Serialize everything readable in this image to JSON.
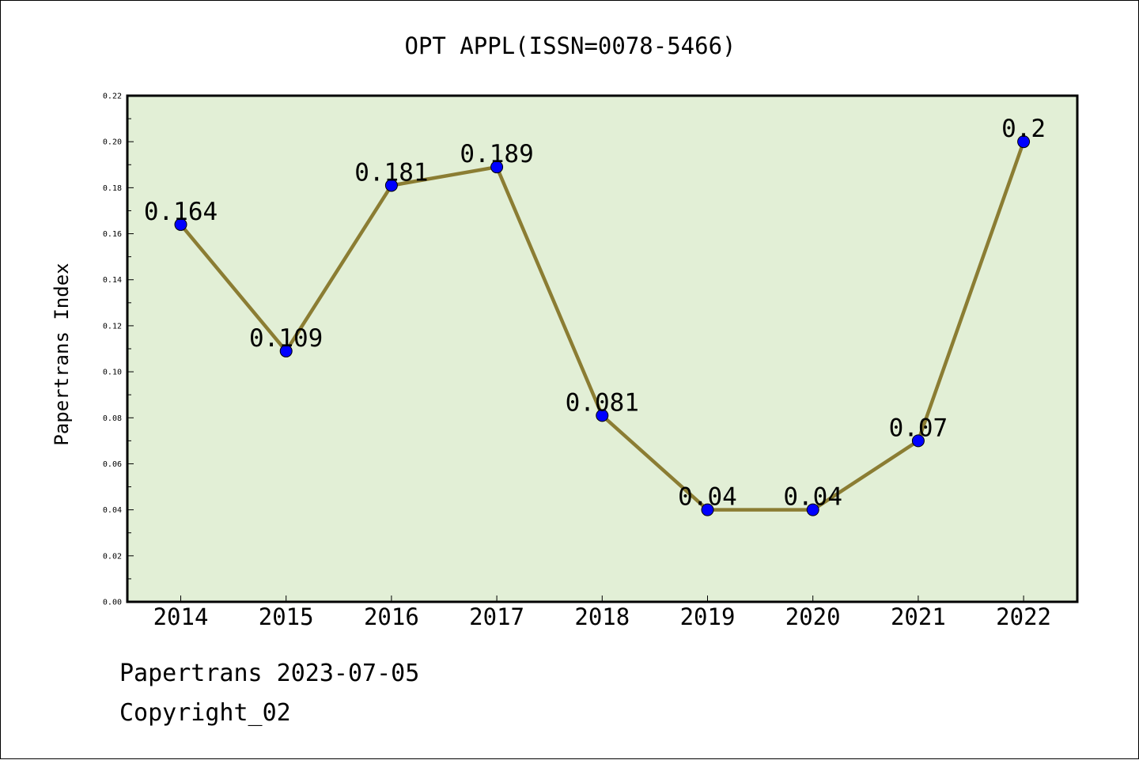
{
  "chart_data": {
    "type": "line",
    "title": "OPT APPL(ISSN=0078-5466)",
    "xlabel": "",
    "ylabel": "Papertrans Index",
    "categories": [
      "2014",
      "2015",
      "2016",
      "2017",
      "2018",
      "2019",
      "2020",
      "2021",
      "2022"
    ],
    "values": [
      0.164,
      0.109,
      0.181,
      0.189,
      0.081,
      0.04,
      0.04,
      0.07,
      0.2
    ],
    "data_labels": [
      "0.164",
      "0.109",
      "0.181",
      "0.189",
      "0.081",
      "0.04",
      "0.04",
      "0.07",
      "0.2"
    ],
    "ylim": [
      0,
      0.22
    ],
    "yticks": [
      "0.00",
      "0.02",
      "0.04",
      "0.06",
      "0.08",
      "0.10",
      "0.12",
      "0.14",
      "0.16",
      "0.18",
      "0.20",
      "0.22"
    ],
    "grid": false,
    "legend": "none",
    "colors": {
      "plot_background": "#e2efd6",
      "line": "#8b7d33",
      "marker": "#0000ff"
    }
  },
  "footer": {
    "line1": "Papertrans 2023-07-05",
    "line2": "Copyright_02"
  }
}
